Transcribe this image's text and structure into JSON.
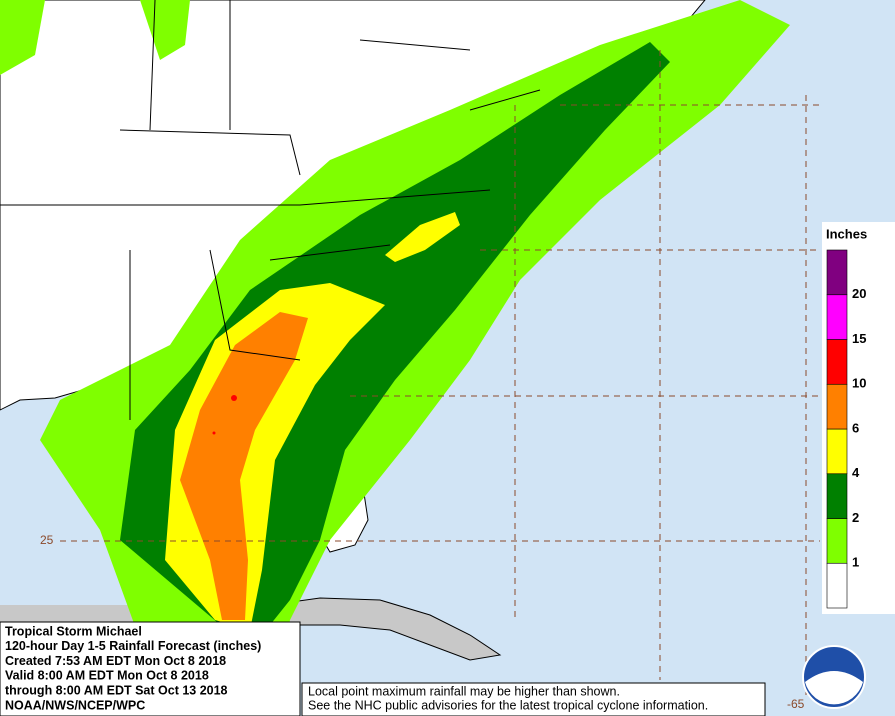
{
  "legend": {
    "title": "Inches",
    "levels": [
      "1",
      "2",
      "4",
      "6",
      "10",
      "15",
      "20"
    ],
    "colors": [
      "#ffffff",
      "#7fff00",
      "#008000",
      "#ffff00",
      "#ff8000",
      "#ff0000",
      "#ff00ff",
      "#800080"
    ]
  },
  "info": {
    "lines": [
      "Tropical Storm Michael",
      "120-hour Day 1-5 Rainfall Forecast (inches)",
      "Created 7:53 AM EDT Mon Oct 8 2018",
      "Valid 8:00 AM EDT Mon Oct 8 2018",
      "through 8:00 AM EDT Sat Oct 13 2018",
      "NOAA/NWS/NCEP/WPC"
    ]
  },
  "note": {
    "lines": [
      "Local point maximum rainfall may be higher than shown.",
      "See the NHC public advisories for the latest tropical cyclone information."
    ]
  },
  "grid_labels": {
    "latitude": "25",
    "longitude": "-65"
  }
}
